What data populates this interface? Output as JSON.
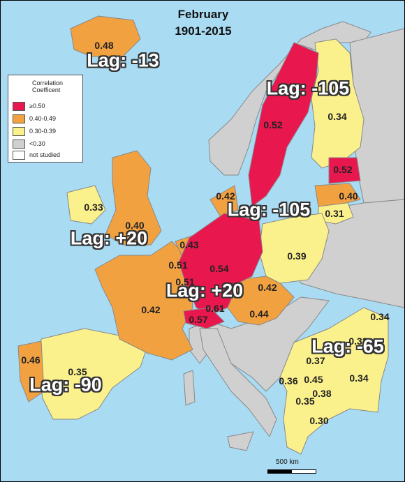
{
  "title": {
    "line1": "February",
    "line2": "1901-2015"
  },
  "legend": {
    "title": "Correlation Coefficent",
    "items": [
      {
        "label": "≥0.50",
        "color": "#e8174e"
      },
      {
        "label": "0.40-0.49",
        "color": "#f2a141"
      },
      {
        "label": "0.30-0.39",
        "color": "#fbf18c"
      },
      {
        "label": "<0.30",
        "color": "#d0d0d0"
      },
      {
        "label": "not studied",
        "color": "#ffffff"
      }
    ]
  },
  "colors": {
    "sea": "#a9dbf3",
    "strong": "#e8174e",
    "moderate": "#f2a141",
    "weak": "#fbf18c",
    "none": "#d0d0d0",
    "unstudied": "#ffffff"
  },
  "values": {
    "iceland": "0.48",
    "sweden": "0.52",
    "finland": "0.34",
    "estonia": "0.52",
    "latvia": "0.40",
    "lithuania": "0.31",
    "norway_coast": "0.42",
    "ireland": "0.33",
    "britain": "0.40",
    "netherlands": "0.43",
    "belgium": "0.51",
    "luxembourg": "0.51",
    "germany": "0.54",
    "poland": "0.39",
    "czech": "0.42",
    "austria": "0.44",
    "switzerland": "0.61",
    "switzerland_west": "0.57",
    "france": "0.42",
    "portugal": "0.46",
    "spain": "0.35",
    "romania": "0.33",
    "moldova": "0.34",
    "bulgaria": "0.34",
    "serbia": "0.37",
    "bosnia": "0.36",
    "montenegro": "0.45",
    "macedonia": "0.38",
    "albania": "0.35",
    "greece": "0.30"
  },
  "lags": {
    "iceland": "Lag: -13",
    "scandinavia": "Lag: -105",
    "baltic": "Lag: -105",
    "britain": "Lag: +20",
    "central": "Lag: +20",
    "iberia": "Lag: -90",
    "balkans": "Lag: -65"
  },
  "scale": {
    "label": "500 km"
  }
}
